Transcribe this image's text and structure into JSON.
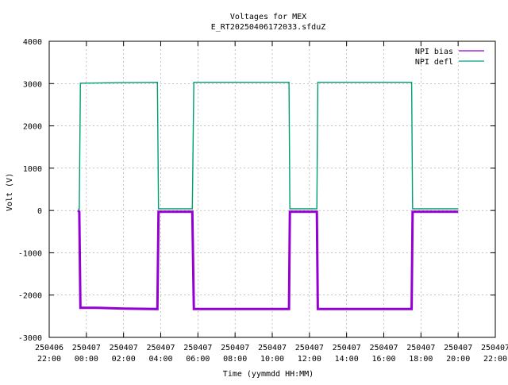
{
  "chart_data": {
    "type": "line",
    "title": "Voltages for MEX",
    "subtitle": "E_RT20250406172033.sfduZ",
    "xlabel": "Time (yymmdd HH:MM)",
    "ylabel": "Volt (V)",
    "x_unit": "hours since 250406 22:00",
    "xlim": [
      0,
      24
    ],
    "ylim": [
      -3000,
      4000
    ],
    "yticks": [
      -3000,
      -2000,
      -1000,
      0,
      1000,
      2000,
      3000,
      4000
    ],
    "xticks": [
      {
        "x": 0,
        "date": "250406",
        "time": "22:00"
      },
      {
        "x": 2,
        "date": "250407",
        "time": "00:00"
      },
      {
        "x": 4,
        "date": "250407",
        "time": "02:00"
      },
      {
        "x": 6,
        "date": "250407",
        "time": "04:00"
      },
      {
        "x": 8,
        "date": "250407",
        "time": "06:00"
      },
      {
        "x": 10,
        "date": "250407",
        "time": "08:00"
      },
      {
        "x": 12,
        "date": "250407",
        "time": "10:00"
      },
      {
        "x": 14,
        "date": "250407",
        "time": "12:00"
      },
      {
        "x": 16,
        "date": "250407",
        "time": "14:00"
      },
      {
        "x": 18,
        "date": "250407",
        "time": "16:00"
      },
      {
        "x": 20,
        "date": "250407",
        "time": "18:00"
      },
      {
        "x": 22,
        "date": "250407",
        "time": "20:00"
      },
      {
        "x": 24,
        "date": "250407",
        "time": "22:00"
      }
    ],
    "grid": true,
    "legend_position": "top-right",
    "series": [
      {
        "name": "NPI bias",
        "color": "#9400d3",
        "points": [
          [
            1.55,
            0
          ],
          [
            1.62,
            -30
          ],
          [
            1.68,
            -2300
          ],
          [
            2.5,
            -2300
          ],
          [
            4.0,
            -2320
          ],
          [
            5.82,
            -2330
          ],
          [
            5.88,
            -30
          ],
          [
            7.7,
            -30
          ],
          [
            7.78,
            -2330
          ],
          [
            11.0,
            -2330
          ],
          [
            12.9,
            -2330
          ],
          [
            12.95,
            -30
          ],
          [
            14.4,
            -30
          ],
          [
            14.45,
            -2330
          ],
          [
            17.0,
            -2330
          ],
          [
            19.5,
            -2330
          ],
          [
            19.55,
            -30
          ],
          [
            22.0,
            -30
          ]
        ]
      },
      {
        "name": "NPI defl",
        "color": "#009e73",
        "points": [
          [
            1.55,
            30
          ],
          [
            1.62,
            30
          ],
          [
            1.68,
            3010
          ],
          [
            3.5,
            3020
          ],
          [
            5.82,
            3030
          ],
          [
            5.88,
            40
          ],
          [
            7.7,
            40
          ],
          [
            7.78,
            3030
          ],
          [
            11.0,
            3030
          ],
          [
            12.9,
            3030
          ],
          [
            12.95,
            40
          ],
          [
            14.4,
            40
          ],
          [
            14.45,
            3030
          ],
          [
            17.0,
            3030
          ],
          [
            19.5,
            3030
          ],
          [
            19.55,
            40
          ],
          [
            22.0,
            40
          ]
        ]
      }
    ]
  }
}
